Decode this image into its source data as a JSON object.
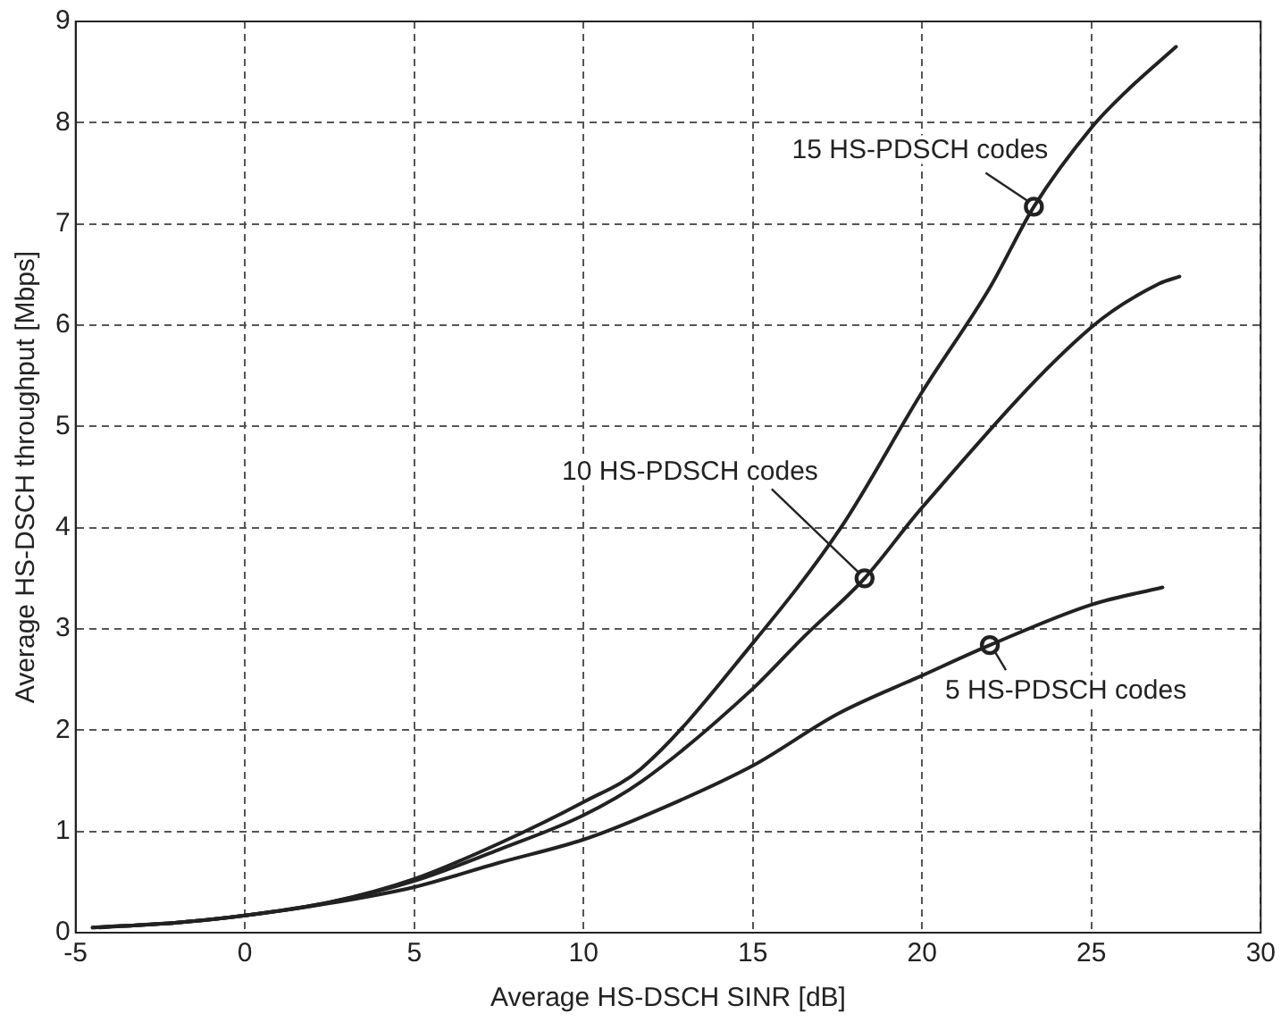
{
  "chart_data": {
    "type": "line",
    "xlabel": "Average HS-DSCH SINR [dB]",
    "ylabel": "Average HS-DSCH throughput [Mbps]",
    "xlim": [
      -5,
      30
    ],
    "xticks": [
      -5,
      0,
      5,
      10,
      15,
      20,
      25,
      30
    ],
    "ylim": [
      0,
      9
    ],
    "yticks": [
      0,
      1,
      2,
      3,
      4,
      5,
      6,
      7,
      8,
      9
    ],
    "grid": true,
    "legend": false,
    "marker": "none",
    "line_style": "solid",
    "series": [
      {
        "color": "#222222",
        "x": [
          -4.3,
          -2,
          0,
          2.5,
          5,
          7.5,
          10,
          11.7,
          15,
          17.6,
          20,
          22,
          23.3,
          25,
          26,
          27.5
        ],
        "values": [
          0.05,
          0.1,
          0.17,
          0.3,
          0.53,
          0.88,
          1.29,
          1.62,
          2.86,
          4.0,
          5.34,
          6.37,
          7.17,
          7.95,
          8.3,
          8.75
        ]
      },
      {
        "color": "#222222",
        "x": [
          -4.5,
          -2,
          0,
          2.5,
          5,
          7.5,
          10,
          11.7,
          15,
          16.5,
          18.3,
          20,
          25,
          27,
          27.6
        ],
        "values": [
          0.05,
          0.1,
          0.17,
          0.3,
          0.51,
          0.82,
          1.16,
          1.49,
          2.41,
          2.92,
          3.5,
          4.2,
          5.98,
          6.41,
          6.48
        ]
      },
      {
        "color": "#222222",
        "x": [
          -4.5,
          -2,
          0,
          2.5,
          5,
          7.5,
          10,
          11.7,
          15,
          17.5,
          20,
          22,
          25,
          27.1
        ],
        "values": [
          0.05,
          0.1,
          0.17,
          0.29,
          0.45,
          0.69,
          0.92,
          1.14,
          1.65,
          2.16,
          2.54,
          2.84,
          3.24,
          3.41
        ]
      }
    ],
    "annotations": [
      {
        "text": "15 HS-PDSCH codes",
        "x": 23.3,
        "y": 7.17
      },
      {
        "text": "10 HS-PDSCH codes",
        "x": 18.3,
        "y": 3.5
      },
      {
        "text": "5 HS-PDSCH codes",
        "x": 22,
        "y": 2.84
      }
    ]
  }
}
